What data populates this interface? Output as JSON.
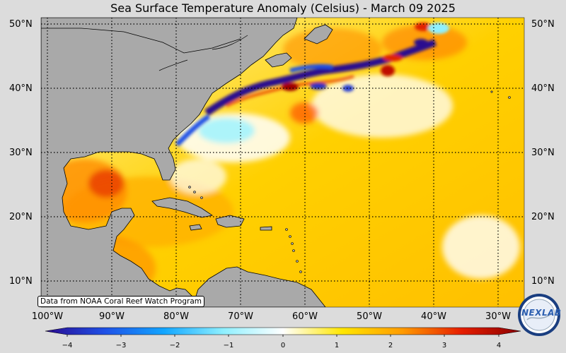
{
  "title": "Sea Surface Temperature Anomaly (Celsius) - March 09 2025",
  "credit": "Data from NOAA Coral Reef Watch Program",
  "lat_labels": [
    "50°N",
    "40°N",
    "30°N",
    "20°N",
    "10°N"
  ],
  "lon_labels": [
    "100°W",
    "90°W",
    "80°W",
    "70°W",
    "60°W",
    "50°W",
    "40°W",
    "30°W"
  ],
  "colorbar": {
    "ticks": [
      "−4",
      "−3",
      "−2",
      "−1",
      "0",
      "1",
      "2",
      "3",
      "4"
    ],
    "min": -4,
    "max": 4,
    "colors": [
      "#2a0a8f",
      "#1f50e6",
      "#12a6ff",
      "#8ff0ff",
      "#ffffff",
      "#ffe600",
      "#ff9c00",
      "#e61e00",
      "#8b0000"
    ]
  },
  "logo": {
    "text": "NEXLAB"
  },
  "colors": {
    "land": "#a9a9a9",
    "background": "#dcdcdc",
    "warm": "#ffd400",
    "cold": "#2a0a8f"
  }
}
